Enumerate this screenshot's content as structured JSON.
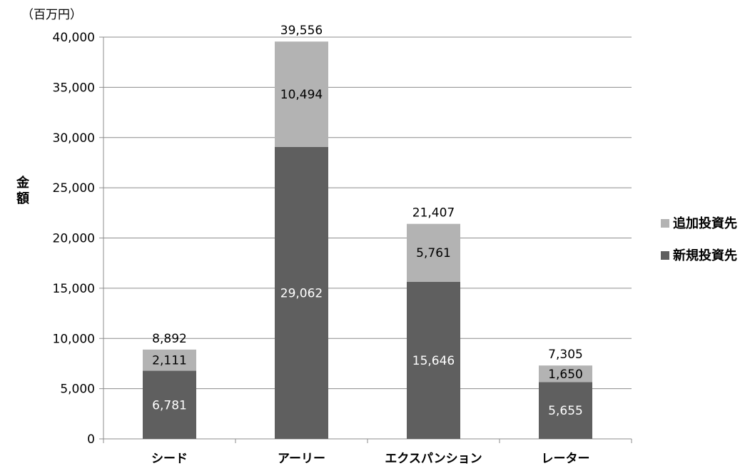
{
  "chart_data": {
    "type": "bar",
    "stacked": true,
    "unit": "（百万円）",
    "ylabel": "金額",
    "xlabel": "",
    "ylim": [
      0,
      40000
    ],
    "yticks": [
      0,
      5000,
      10000,
      15000,
      20000,
      25000,
      30000,
      35000,
      40000
    ],
    "ytick_labels": [
      "0",
      "5,000",
      "10,000",
      "15,000",
      "20,000",
      "25,000",
      "30,000",
      "35,000",
      "40,000"
    ],
    "grid": true,
    "legend_position": "right",
    "categories": [
      "シード",
      "アーリー",
      "エクスパンション",
      "レーター"
    ],
    "series": [
      {
        "name": "新規投資先",
        "color": "#5f5f5f",
        "label_color": "#ffffff",
        "values": [
          6781,
          29062,
          15646,
          5655
        ],
        "labels": [
          "6,781",
          "29,062",
          "15,646",
          "5,655"
        ]
      },
      {
        "name": "追加投資先",
        "color": "#b3b3b3",
        "label_color": "#000000",
        "values": [
          2111,
          10494,
          5761,
          1650
        ],
        "labels": [
          "2,111",
          "10,494",
          "5,761",
          "1,650"
        ]
      }
    ],
    "totals": [
      8892,
      39556,
      21407,
      7305
    ],
    "total_labels": [
      "8,892",
      "39,556",
      "21,407",
      "7,305"
    ],
    "legend_order": [
      "追加投資先",
      "新規投資先"
    ]
  }
}
